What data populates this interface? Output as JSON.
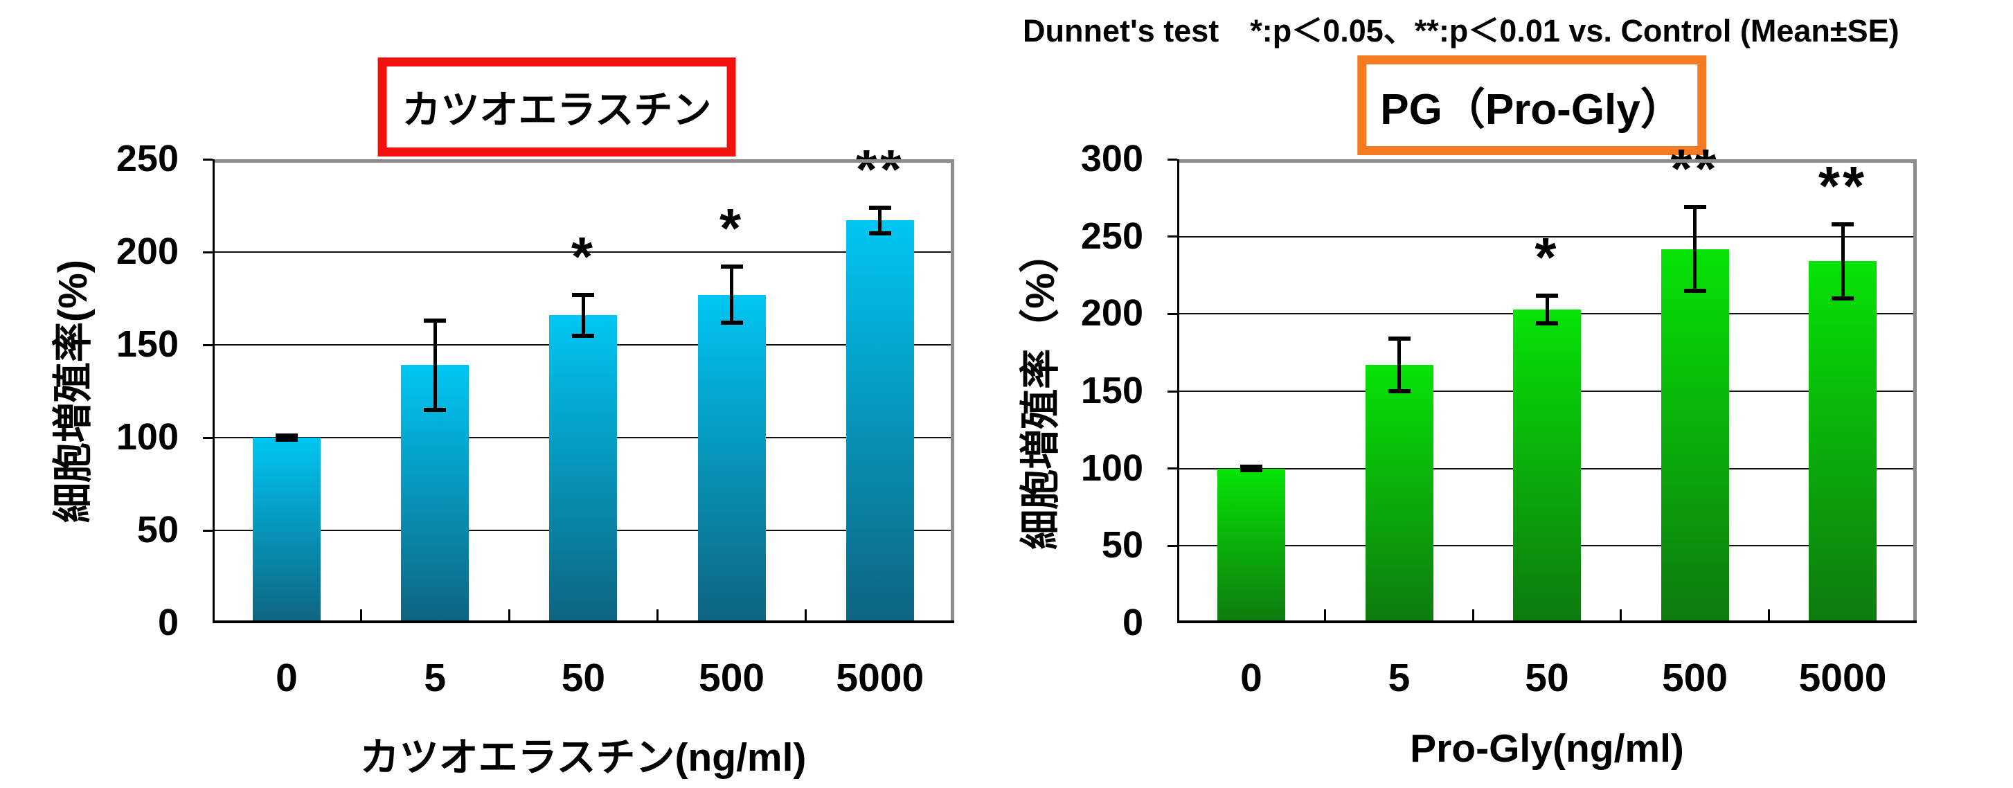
{
  "annotation": {
    "text": "Dunnet's test　*:p＜0.05、**:p＜0.01 vs. Control (Mean±SE)"
  },
  "colors": {
    "grid": "#111111",
    "frame_gray": "#8c8c8c",
    "axis_black": "#000000",
    "error_bar": "#000000",
    "left_title_border": "#f2120d",
    "right_title_border": "#f47b20"
  },
  "chart_data": [
    {
      "type": "bar",
      "title": "カツオエラスチン",
      "xlabel": "カツオエラスチン(ng/ml)",
      "ylabel": "細胞増殖率(%)",
      "categories": [
        "0",
        "5",
        "50",
        "500",
        "5000"
      ],
      "values": [
        100,
        139,
        166,
        177,
        217
      ],
      "errors_se": [
        1,
        24,
        11,
        15,
        7
      ],
      "significance": [
        "",
        "",
        "*",
        "*",
        "**"
      ],
      "ylim": [
        0,
        250
      ],
      "yticks": [
        0,
        50,
        100,
        150,
        200,
        250
      ],
      "grid": true,
      "legend": "none",
      "title_box_border_color": "#f2120d",
      "bar_color_top": "#00c6f3",
      "bar_color_bottom": "#0e6480"
    },
    {
      "type": "bar",
      "title": "PG（Pro-Gly）",
      "xlabel": "Pro-Gly(ng/ml)",
      "ylabel": "細胞増殖率（%）",
      "categories": [
        "0",
        "5",
        "50",
        "500",
        "5000"
      ],
      "values": [
        100,
        167,
        203,
        242,
        234
      ],
      "errors_se": [
        1,
        17,
        9,
        27,
        24
      ],
      "significance": [
        "",
        "",
        "*",
        "**",
        "**"
      ],
      "ylim": [
        0,
        300
      ],
      "yticks": [
        0,
        50,
        100,
        150,
        200,
        250,
        300
      ],
      "grid": true,
      "legend": "none",
      "title_box_border_color": "#f47b20",
      "bar_color_top": "#06e306",
      "bar_color_bottom": "#0e7a0e"
    }
  ]
}
